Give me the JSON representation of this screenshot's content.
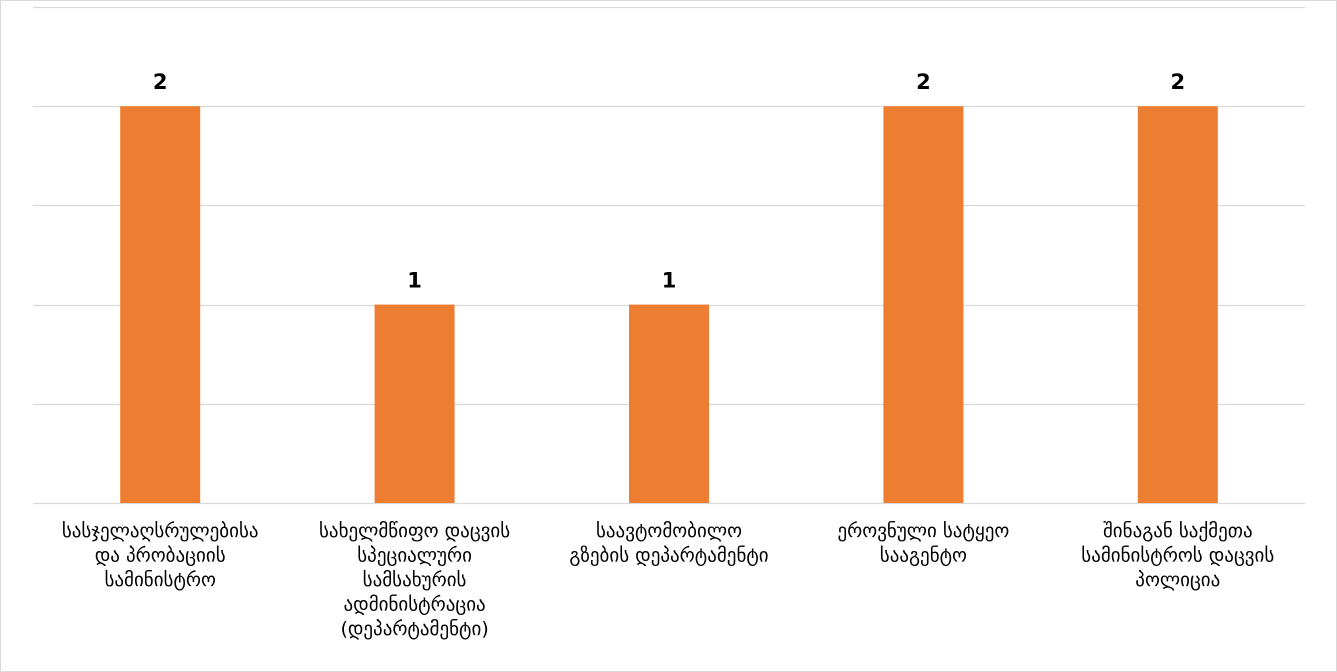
{
  "chart_data": {
    "type": "bar",
    "categories": [
      [
        "სასჯელაღსრულებისა",
        "და პრობაციის",
        "სამინისტრო"
      ],
      [
        "სახელმწიფო დაცვის",
        "სპეციალური",
        "სამსახურის",
        "ადმინისტრაცია",
        "(დეპარტამენტი)"
      ],
      [
        "საავტომობილო",
        "გზების დეპარტამენტი"
      ],
      [
        "ეროვნული სატყეო",
        "სააგენტო"
      ],
      [
        "შინაგან საქმეთა",
        "სამინისტროს დაცვის",
        "პოლიცია"
      ]
    ],
    "values": [
      2,
      1,
      1,
      2,
      2
    ],
    "data_labels": [
      "2",
      "1",
      "1",
      "2",
      "2"
    ],
    "ylim": [
      0,
      2.5
    ],
    "grid": true,
    "bar_color": "#ed7d31",
    "grid_color": "#d9d9d9"
  }
}
